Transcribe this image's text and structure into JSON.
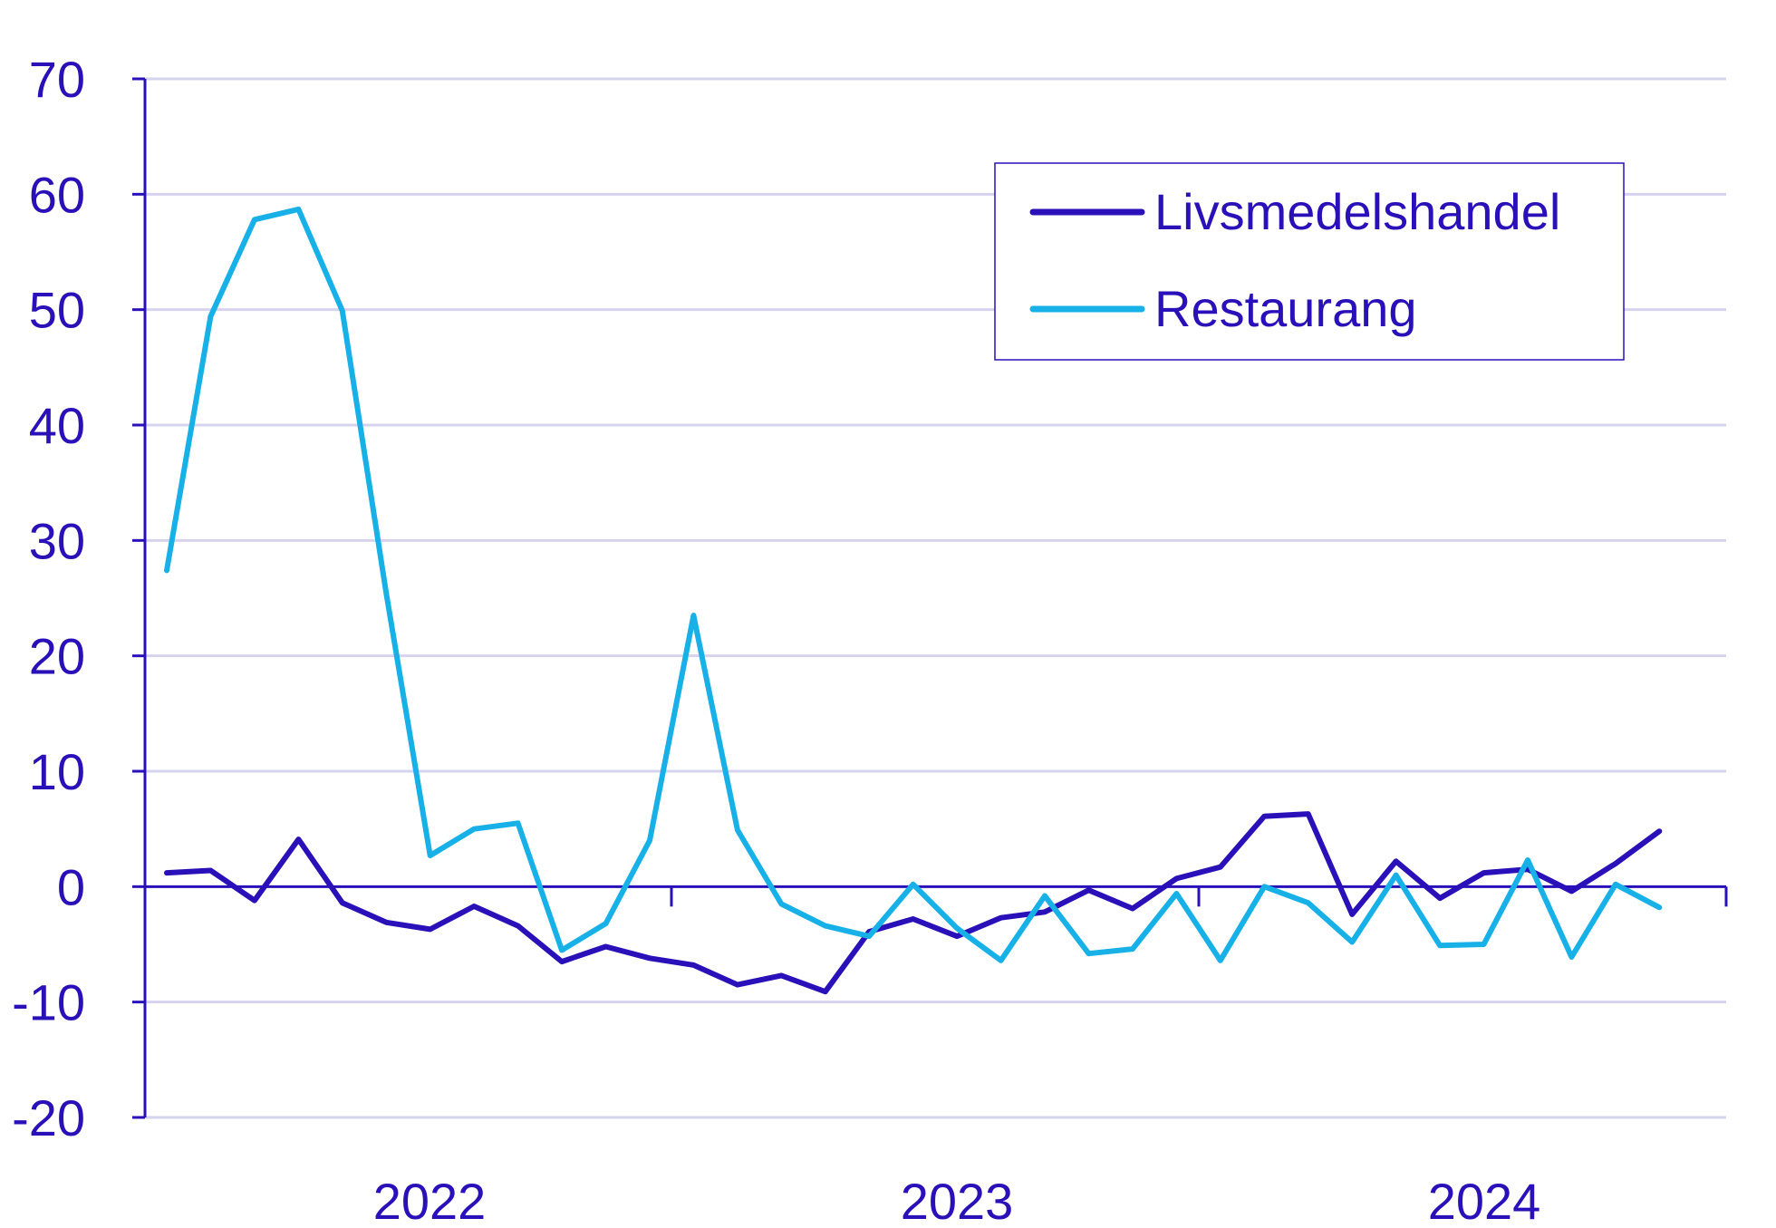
{
  "chart_data": {
    "type": "line",
    "title": "",
    "xlabel": "",
    "ylabel": "",
    "ylim": [
      -20,
      70
    ],
    "y_ticks": [
      70,
      60,
      50,
      40,
      30,
      20,
      10,
      0,
      -10,
      -20
    ],
    "x_tick_labels": [
      "2022",
      "2023",
      "2024"
    ],
    "grid": true,
    "legend_position": "top-right",
    "colors": {
      "axis": "#2a10b8",
      "grid": "#d6d3ee",
      "text": "#2a10b8"
    },
    "series": [
      {
        "name": "Livsmedelshandel",
        "color": "#2a10b8",
        "values": [
          1.2,
          1.4,
          -1.2,
          4.1,
          -1.4,
          -3.1,
          -3.7,
          -1.7,
          -3.4,
          -6.5,
          -5.2,
          -6.2,
          -6.8,
          -8.5,
          -7.7,
          -9.1,
          -3.9,
          -2.8,
          -4.3,
          -2.7,
          -2.2,
          -0.3,
          -1.9,
          0.7,
          1.7,
          6.1,
          6.3,
          -2.4,
          2.2,
          -1.0,
          1.2,
          1.5,
          -0.4,
          2.0,
          4.8
        ]
      },
      {
        "name": "Restaurang",
        "color": "#17b1e8",
        "values": [
          27.4,
          49.4,
          57.8,
          58.7,
          49.9,
          25.4,
          2.7,
          5.0,
          5.5,
          -5.5,
          -3.2,
          4.0,
          23.5,
          4.9,
          -1.5,
          -3.4,
          -4.3,
          0.2,
          -3.6,
          -6.4,
          -0.8,
          -5.8,
          -5.4,
          -0.6,
          -6.4,
          0.0,
          -1.4,
          -4.8,
          1.0,
          -5.1,
          -5.0,
          2.3,
          -6.1,
          0.2,
          -1.8
        ]
      }
    ]
  }
}
